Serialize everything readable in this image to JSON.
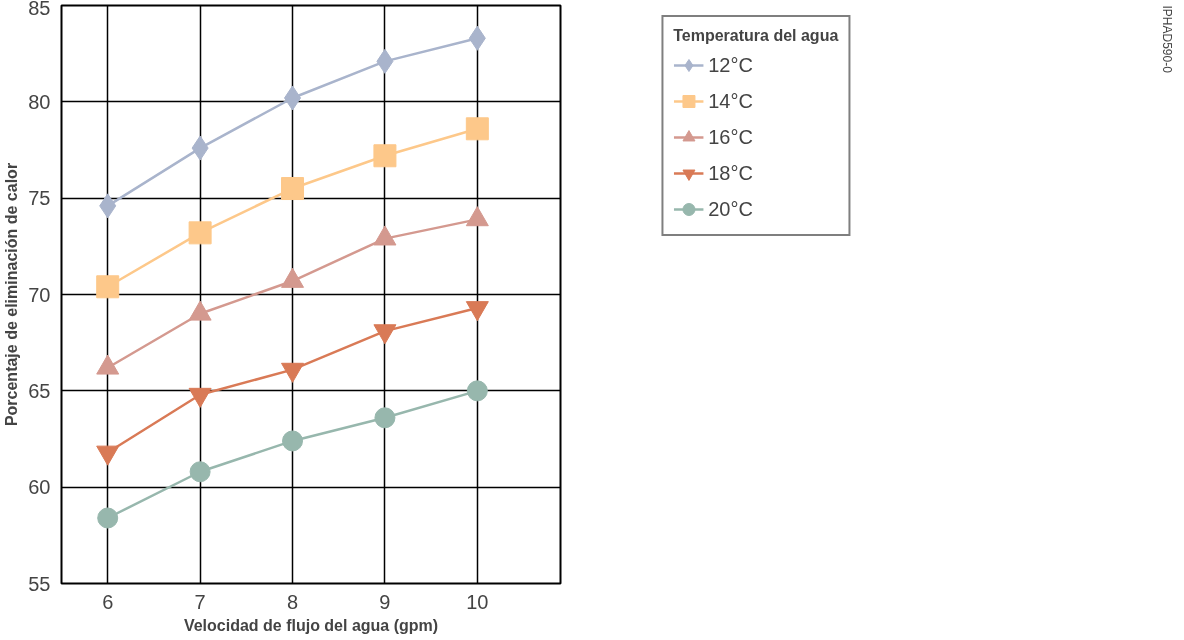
{
  "chart_data": {
    "type": "line",
    "xlabel": "Velocidad de flujo del agua (gpm)",
    "ylabel": "Porcentaje de eliminación de calor",
    "legend_title": "Temperatura del agua",
    "x": [
      6,
      7,
      8,
      9,
      10
    ],
    "series": [
      {
        "name": "12°C",
        "color": "#a9b4cc",
        "marker": "diamond",
        "values": [
          74.6,
          77.6,
          80.2,
          82.1,
          83.3
        ]
      },
      {
        "name": "14°C",
        "color": "#fdc88a",
        "marker": "square",
        "values": [
          70.4,
          73.2,
          75.5,
          77.2,
          78.6
        ]
      },
      {
        "name": "16°C",
        "color": "#d4998f",
        "marker": "triangle",
        "values": [
          66.2,
          69.0,
          70.7,
          72.9,
          73.9
        ]
      },
      {
        "name": "18°C",
        "color": "#d97a56",
        "marker": "triangle-down",
        "values": [
          61.8,
          64.8,
          66.1,
          68.1,
          69.3
        ]
      },
      {
        "name": "20°C",
        "color": "#97b7ad",
        "marker": "circle",
        "values": [
          58.4,
          60.8,
          62.4,
          63.6,
          65.0
        ]
      }
    ],
    "xlim": [
      5.5,
      10.9
    ],
    "ylim": [
      55,
      85
    ],
    "xticks": [
      6,
      7,
      8,
      9,
      10
    ],
    "yticks": [
      55,
      60,
      65,
      70,
      75,
      80,
      85
    ],
    "grid": true,
    "legend": "right",
    "line_style": "solid",
    "annotations": [
      "IPHAD590-0"
    ]
  }
}
